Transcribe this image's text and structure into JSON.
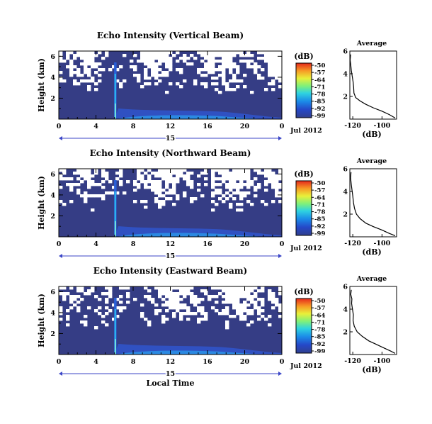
{
  "chart_data": [
    {
      "type": "heatmap",
      "title": "Echo Intensity (Vertical Beam)",
      "xlabel": "",
      "ylabel": "Height (km)",
      "xticks": [
        "0",
        "4",
        "8",
        "12",
        "16",
        "20",
        "0"
      ],
      "yticks": [
        "2",
        "4",
        "6"
      ],
      "day_label": "15",
      "date_label": "Jul 2012",
      "colorbar": {
        "title": "(dB)",
        "ticks": [
          "-50",
          "-57",
          "-64",
          "-71",
          "-78",
          "-85",
          "-92",
          "-99"
        ]
      },
      "profile": {
        "title": "Average",
        "xlabel": "(dB)",
        "xticks": [
          "-120",
          "-100"
        ],
        "yticks": [
          "2",
          "4",
          "6"
        ],
        "xlim": [
          -122,
          -90
        ],
        "ylim": [
          0,
          6
        ],
        "points": [
          [
            -121.5,
            5.7
          ],
          [
            -121.8,
            5.2
          ],
          [
            -121.4,
            4.8
          ],
          [
            -121.0,
            4.3
          ],
          [
            -120.4,
            3.8
          ],
          [
            -119.8,
            3.3
          ],
          [
            -119.4,
            2.8
          ],
          [
            -119.2,
            2.3
          ],
          [
            -118.0,
            1.9
          ],
          [
            -115.0,
            1.6
          ],
          [
            -111.0,
            1.3
          ],
          [
            -106.0,
            1.0
          ],
          [
            -100.0,
            0.7
          ],
          [
            -95.0,
            0.4
          ],
          [
            -91.0,
            0.1
          ]
        ]
      }
    },
    {
      "type": "heatmap",
      "title": "Echo Intensity (Northward Beam)",
      "xlabel": "",
      "ylabel": "Height (km)",
      "xticks": [
        "0",
        "4",
        "8",
        "12",
        "16",
        "20",
        "0"
      ],
      "yticks": [
        "2",
        "4",
        "6"
      ],
      "day_label": "15",
      "date_label": "Jul 2012",
      "colorbar": {
        "title": "(dB)",
        "ticks": [
          "-50",
          "-57",
          "-64",
          "-71",
          "-78",
          "-85",
          "-92",
          "-99"
        ]
      },
      "profile": {
        "title": "Average",
        "xlabel": "(dB)",
        "xticks": [
          "-120",
          "-100"
        ],
        "yticks": [
          "2",
          "4",
          "6"
        ],
        "xlim": [
          -122,
          -90
        ],
        "ylim": [
          0,
          6
        ],
        "points": [
          [
            -121.2,
            5.7
          ],
          [
            -121.5,
            5.2
          ],
          [
            -121.0,
            4.6
          ],
          [
            -120.5,
            4.1
          ],
          [
            -120.0,
            3.6
          ],
          [
            -119.5,
            3.0
          ],
          [
            -118.8,
            2.5
          ],
          [
            -117.5,
            2.0
          ],
          [
            -115.0,
            1.6
          ],
          [
            -111.0,
            1.2
          ],
          [
            -106.0,
            0.9
          ],
          [
            -100.0,
            0.6
          ],
          [
            -95.0,
            0.3
          ],
          [
            -91.0,
            0.1
          ]
        ]
      }
    },
    {
      "type": "heatmap",
      "title": "Echo Intensity (Eastward Beam)",
      "xlabel": "Local Time",
      "ylabel": "Height (km)",
      "xticks": [
        "0",
        "4",
        "8",
        "12",
        "16",
        "20",
        "0"
      ],
      "yticks": [
        "2",
        "4",
        "6"
      ],
      "day_label": "15",
      "date_label": "Jul 2012",
      "colorbar": {
        "title": "(dB)",
        "ticks": [
          "-50",
          "-57",
          "-64",
          "-71",
          "-78",
          "-85",
          "-92",
          "-99"
        ]
      },
      "profile": {
        "title": "Average",
        "xlabel": "(dB)",
        "xticks": [
          "-120",
          "-100"
        ],
        "yticks": [
          "2",
          "4",
          "6"
        ],
        "xlim": [
          -122,
          -90
        ],
        "ylim": [
          0,
          6
        ],
        "points": [
          [
            -121.0,
            5.7
          ],
          [
            -121.4,
            5.3
          ],
          [
            -120.6,
            4.9
          ],
          [
            -120.8,
            4.5
          ],
          [
            -120.2,
            4.0
          ],
          [
            -119.6,
            3.5
          ],
          [
            -119.8,
            3.0
          ],
          [
            -119.0,
            2.5
          ],
          [
            -117.0,
            2.0
          ],
          [
            -113.5,
            1.6
          ],
          [
            -109.0,
            1.2
          ],
          [
            -104.0,
            0.9
          ],
          [
            -99.0,
            0.6
          ],
          [
            -94.0,
            0.3
          ],
          [
            -91.0,
            0.1
          ]
        ]
      }
    }
  ]
}
